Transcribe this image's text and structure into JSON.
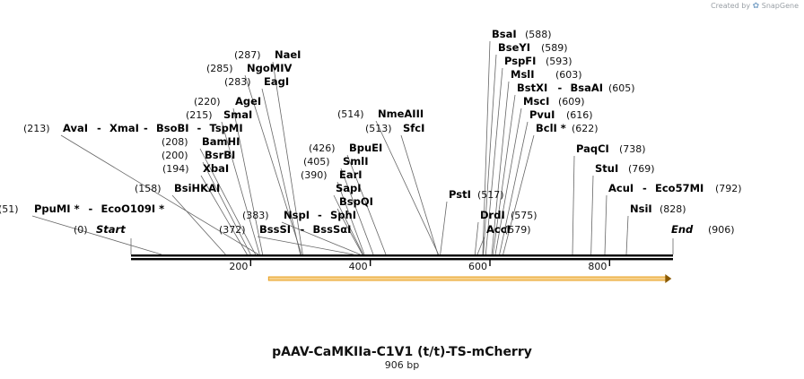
{
  "credit": {
    "text": "Created by",
    "brand": "SnapGene"
  },
  "plasmid": {
    "name": "pAAV-CaMKIIa-C1V1 (t/t)-TS-mCherry",
    "length_label": "906 bp",
    "length": 906
  },
  "scale": {
    "ticks": [
      200,
      400,
      600,
      800
    ]
  },
  "feature": {
    "name": "C1V1 arrow",
    "start": 230,
    "end": 905,
    "color": "#e8a020"
  },
  "markers": [
    {
      "pos": "(0)",
      "name": "Start",
      "bp": 0,
      "italic": true
    },
    {
      "pos": "(906)",
      "name": "End",
      "bp": 906,
      "italic": true
    }
  ],
  "sites": [
    {
      "pos": "(51)",
      "parts": [
        "PpuMI *",
        "EcoO109I *"
      ],
      "bp": 51
    },
    {
      "pos": "(158)",
      "parts": [
        "BsiHKAI"
      ],
      "bp": 158
    },
    {
      "pos": "(194)",
      "parts": [
        "XbaI"
      ],
      "bp": 194
    },
    {
      "pos": "(200)",
      "parts": [
        "BsrBI"
      ],
      "bp": 200
    },
    {
      "pos": "(208)",
      "parts": [
        "BamHI"
      ],
      "bp": 208
    },
    {
      "pos": "(213)",
      "parts": [
        "AvaI",
        "XmaI",
        "BsoBI",
        "TspMI"
      ],
      "bp": 213
    },
    {
      "pos": "(215)",
      "parts": [
        "SmaI"
      ],
      "bp": 215
    },
    {
      "pos": "(220)",
      "parts": [
        "AgeI"
      ],
      "bp": 220
    },
    {
      "pos": "(283)",
      "parts": [
        "EagI"
      ],
      "bp": 283
    },
    {
      "pos": "(285)",
      "parts": [
        "NgoMIV"
      ],
      "bp": 285
    },
    {
      "pos": "(287)",
      "parts": [
        "NaeI"
      ],
      "bp": 287
    },
    {
      "pos": "(372)",
      "parts": [
        "BssSI",
        "BssSαI"
      ],
      "bp": 372
    },
    {
      "pos": "(383)",
      "parts": [
        "NspI",
        "SphI"
      ],
      "bp": 383
    },
    {
      "pos": "",
      "parts": [
        "BspQI"
      ],
      "bp": 387
    },
    {
      "pos": "",
      "parts": [
        "SapI"
      ],
      "bp": 388
    },
    {
      "pos": "(390)",
      "parts": [
        "EarI"
      ],
      "bp": 390
    },
    {
      "pos": "(405)",
      "parts": [
        "SmlI"
      ],
      "bp": 405
    },
    {
      "pos": "(426)",
      "parts": [
        "BpuEI"
      ],
      "bp": 426
    },
    {
      "pos": "(513)",
      "parts": [
        "SfcI"
      ],
      "bp": 513
    },
    {
      "pos": "(514)",
      "parts": [
        "NmeAIII"
      ],
      "bp": 514
    },
    {
      "pos": "(517)",
      "parts": [
        "PstI"
      ],
      "bp": 517
    },
    {
      "pos": "(575)",
      "parts": [
        "DrdI"
      ],
      "bp": 575
    },
    {
      "pos": "(579)",
      "parts": [
        "AccI"
      ],
      "bp": 579
    },
    {
      "pos": "(588)",
      "parts": [
        "BsaI"
      ],
      "bp": 588
    },
    {
      "pos": "(589)",
      "parts": [
        "BseYI"
      ],
      "bp": 589
    },
    {
      "pos": "(593)",
      "parts": [
        "PspFI"
      ],
      "bp": 593
    },
    {
      "pos": "(603)",
      "parts": [
        "MslI"
      ],
      "bp": 603
    },
    {
      "pos": "(605)",
      "parts": [
        "BstXI",
        "BsaAI"
      ],
      "bp": 605
    },
    {
      "pos": "(609)",
      "parts": [
        "MscI"
      ],
      "bp": 609
    },
    {
      "pos": "(616)",
      "parts": [
        "PvuI"
      ],
      "bp": 616
    },
    {
      "pos": "(622)",
      "parts": [
        "BclI *"
      ],
      "bp": 622
    },
    {
      "pos": "(738)",
      "parts": [
        "PaqCI"
      ],
      "bp": 738
    },
    {
      "pos": "(769)",
      "parts": [
        "StuI"
      ],
      "bp": 769
    },
    {
      "pos": "(792)",
      "parts": [
        "AcuI",
        "Eco57MI"
      ],
      "bp": 792
    },
    {
      "pos": "(828)",
      "parts": [
        "NsiI"
      ],
      "bp": 828
    }
  ]
}
